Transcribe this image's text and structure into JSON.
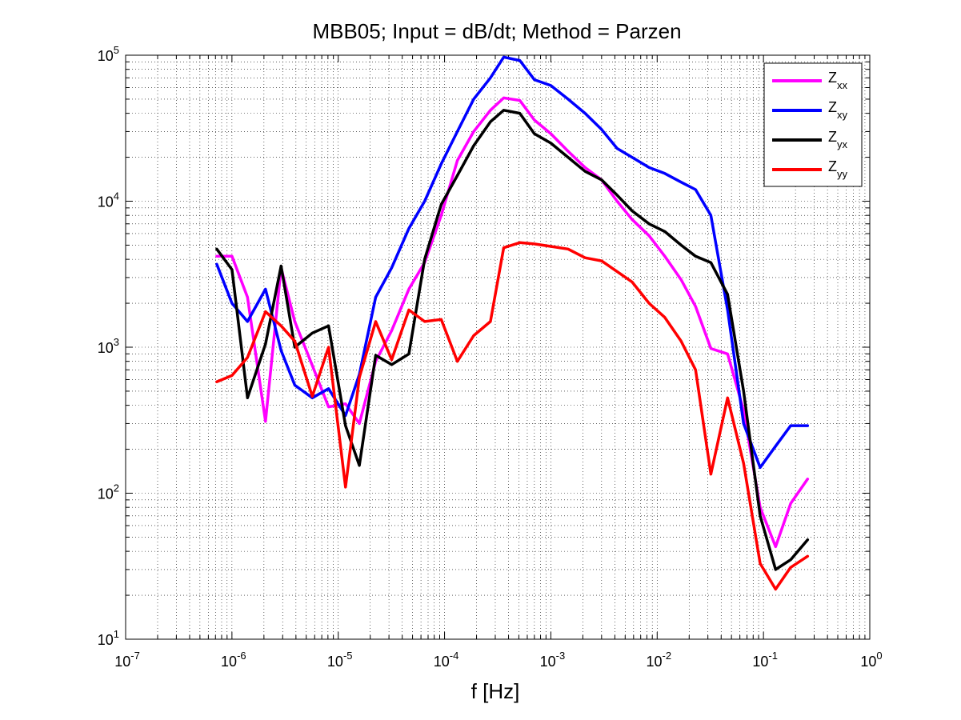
{
  "chart_data": {
    "type": "line",
    "title": "MBB05; Input = dB/dt; Method = Parzen",
    "xlabel": "f [Hz]",
    "ylabel": "",
    "xscale": "log",
    "yscale": "log",
    "xlim": [
      1e-07,
      1
    ],
    "ylim": [
      10,
      100000
    ],
    "grid": true,
    "legend_position": "top-right",
    "x_tick_labels": [
      {
        "base": "10",
        "exp": "-7"
      },
      {
        "base": "10",
        "exp": "-6"
      },
      {
        "base": "10",
        "exp": "-5"
      },
      {
        "base": "10",
        "exp": "-4"
      },
      {
        "base": "10",
        "exp": "-3"
      },
      {
        "base": "10",
        "exp": "-2"
      },
      {
        "base": "10",
        "exp": "-1"
      },
      {
        "base": "10",
        "exp": "0"
      }
    ],
    "y_tick_labels": [
      {
        "base": "10",
        "exp": "1"
      },
      {
        "base": "10",
        "exp": "2"
      },
      {
        "base": "10",
        "exp": "3"
      },
      {
        "base": "10",
        "exp": "4"
      },
      {
        "base": "10",
        "exp": "5"
      }
    ],
    "series": [
      {
        "name_base": "Z",
        "name_sub": "xx",
        "color": "#ff00ff",
        "x": [
          7.2e-07,
          1e-06,
          1.4e-06,
          2.07e-06,
          2.9e-06,
          3.9e-06,
          5.7e-06,
          8.1e-06,
          1.17e-05,
          1.58e-05,
          2.25e-05,
          3.18e-05,
          4.62e-05,
          6.5e-05,
          9.3e-05,
          0.000132,
          0.000188,
          0.00027,
          0.00036,
          0.00051,
          0.0007,
          0.001,
          0.00145,
          0.0021,
          0.003,
          0.0042,
          0.0058,
          0.0084,
          0.0118,
          0.0168,
          0.023,
          0.032,
          0.046,
          0.065,
          0.093,
          0.13,
          0.18,
          0.26
        ],
        "y": [
          4200,
          4200,
          2200,
          310,
          3500,
          1500,
          750,
          390,
          410,
          300,
          800,
          1300,
          2500,
          3800,
          8000,
          19000,
          30000,
          42000,
          51000,
          49000,
          36000,
          29000,
          22000,
          17000,
          14000,
          10000,
          7500,
          5800,
          4200,
          2900,
          1900,
          980,
          900,
          370,
          80,
          43,
          85,
          125
        ]
      },
      {
        "name_base": "Z",
        "name_sub": "xy",
        "color": "#0000ff",
        "x": [
          7.2e-07,
          1e-06,
          1.4e-06,
          2.07e-06,
          2.9e-06,
          3.9e-06,
          5.7e-06,
          8.1e-06,
          1.17e-05,
          1.58e-05,
          2.25e-05,
          3.18e-05,
          4.62e-05,
          6.5e-05,
          9.3e-05,
          0.000132,
          0.000188,
          0.00027,
          0.00036,
          0.00051,
          0.0007,
          0.001,
          0.00145,
          0.0021,
          0.003,
          0.0042,
          0.0058,
          0.0084,
          0.0118,
          0.0168,
          0.023,
          0.032,
          0.046,
          0.065,
          0.093,
          0.13,
          0.18,
          0.26
        ],
        "y": [
          3700,
          2000,
          1500,
          2500,
          950,
          550,
          450,
          520,
          340,
          650,
          2200,
          3500,
          6500,
          10000,
          18000,
          30000,
          50000,
          70000,
          97000,
          92000,
          68000,
          62000,
          50000,
          40000,
          31000,
          23000,
          20000,
          17000,
          15500,
          13500,
          12000,
          8000,
          1800,
          300,
          150,
          210,
          290,
          290
        ]
      },
      {
        "name_base": "Z",
        "name_sub": "yx",
        "color": "#000000",
        "x": [
          7.2e-07,
          1e-06,
          1.4e-06,
          2.07e-06,
          2.9e-06,
          3.9e-06,
          5.7e-06,
          8.1e-06,
          1.17e-05,
          1.58e-05,
          2.25e-05,
          3.18e-05,
          4.62e-05,
          6.5e-05,
          9.3e-05,
          0.000132,
          0.000188,
          0.00027,
          0.00036,
          0.00051,
          0.0007,
          0.001,
          0.00145,
          0.0021,
          0.003,
          0.0042,
          0.0058,
          0.0084,
          0.0118,
          0.0168,
          0.023,
          0.032,
          0.046,
          0.065,
          0.093,
          0.13,
          0.18,
          0.26
        ],
        "y": [
          4700,
          3400,
          450,
          1050,
          3600,
          1000,
          1250,
          1400,
          290,
          155,
          880,
          760,
          900,
          4000,
          9500,
          15000,
          24000,
          35000,
          42000,
          40000,
          29000,
          25000,
          20000,
          16000,
          14000,
          11000,
          8600,
          7000,
          6200,
          5000,
          4200,
          3800,
          2300,
          500,
          70,
          30,
          35,
          48
        ]
      },
      {
        "name_base": "Z",
        "name_sub": "yy",
        "color": "#ff0000",
        "x": [
          7.2e-07,
          1e-06,
          1.4e-06,
          2.07e-06,
          2.9e-06,
          3.9e-06,
          5.7e-06,
          8.1e-06,
          1.17e-05,
          1.58e-05,
          2.25e-05,
          3.18e-05,
          4.62e-05,
          6.5e-05,
          9.3e-05,
          0.000132,
          0.000188,
          0.00027,
          0.00036,
          0.00051,
          0.0007,
          0.001,
          0.00145,
          0.0021,
          0.003,
          0.0042,
          0.0058,
          0.0084,
          0.0118,
          0.0168,
          0.023,
          0.032,
          0.046,
          0.065,
          0.093,
          0.13,
          0.18,
          0.26
        ],
        "y": [
          580,
          640,
          850,
          1750,
          1400,
          1100,
          460,
          1000,
          110,
          620,
          1500,
          820,
          1800,
          1500,
          1550,
          800,
          1200,
          1500,
          4800,
          5200,
          5100,
          4900,
          4700,
          4100,
          3900,
          3300,
          2800,
          2000,
          1600,
          1100,
          700,
          135,
          450,
          160,
          33,
          22,
          31,
          37
        ]
      }
    ]
  }
}
